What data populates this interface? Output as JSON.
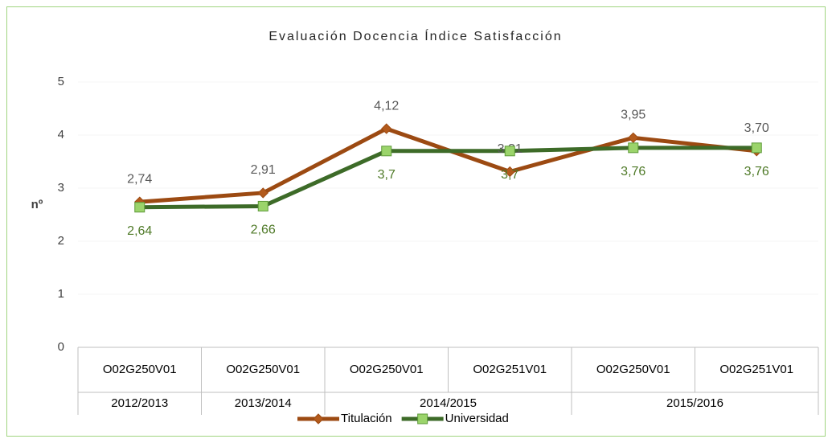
{
  "chart_data": {
    "type": "line",
    "title": "Evaluación Docencia Índice Satisfacción",
    "y_label": "nº",
    "categories": [
      "O02G250V01",
      "O02G250V01",
      "O02G250V01",
      "O02G251V01",
      "O02G250V01",
      "O02G251V01"
    ],
    "category_groups": [
      "2012/2013",
      "2013/2014",
      "2014/2015",
      "2014/2015",
      "2015/2016",
      "2015/2016"
    ],
    "series": [
      {
        "name": "Titulación",
        "color": "#9c4a12",
        "values": [
          2.74,
          2.91,
          4.12,
          3.31,
          3.95,
          3.7
        ],
        "value_labels": [
          "2,74",
          "2,91",
          "4,12",
          "3,31",
          "3,95",
          "3,70"
        ]
      },
      {
        "name": "Universidad",
        "color": "#3d6b28",
        "values": [
          2.64,
          2.66,
          3.7,
          3.7,
          3.76,
          3.76
        ],
        "value_labels": [
          "2,64",
          "2,66",
          "3,7",
          "3,7",
          "3,76",
          "3,76"
        ]
      }
    ],
    "ylim": [
      0,
      5
    ],
    "yticks": [
      0,
      1,
      2,
      3,
      4,
      5
    ],
    "grid": true,
    "legend": "bottom"
  }
}
